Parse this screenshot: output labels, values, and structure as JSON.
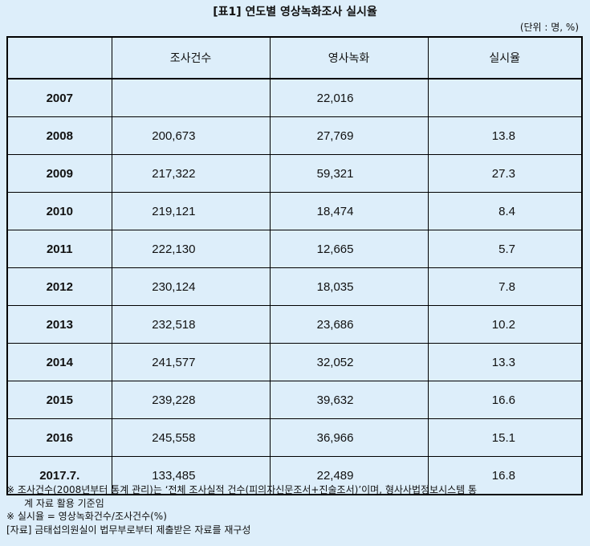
{
  "title": "[표1] 연도별 영상녹화조사 실시율",
  "unit": "(단위 : 명, %)",
  "headers": [
    "",
    "조사건수",
    "영사녹화",
    "실시율"
  ],
  "rows": [
    {
      "year": "2007",
      "cases": "",
      "recorded": "22,016",
      "rate": ""
    },
    {
      "year": "2008",
      "cases": "200,673",
      "recorded": "27,769",
      "rate": "13.8"
    },
    {
      "year": "2009",
      "cases": "217,322",
      "recorded": "59,321",
      "rate": "27.3"
    },
    {
      "year": "2010",
      "cases": "219,121",
      "recorded": "18,474",
      "rate": "8.4"
    },
    {
      "year": "2011",
      "cases": "222,130",
      "recorded": "12,665",
      "rate": "5.7"
    },
    {
      "year": "2012",
      "cases": "230,124",
      "recorded": "18,035",
      "rate": "7.8"
    },
    {
      "year": "2013",
      "cases": "232,518",
      "recorded": "23,686",
      "rate": "10.2"
    },
    {
      "year": "2014",
      "cases": "241,577",
      "recorded": "32,052",
      "rate": "13.3"
    },
    {
      "year": "2015",
      "cases": "239,228",
      "recorded": "39,632",
      "rate": "16.6"
    },
    {
      "year": "2016",
      "cases": "245,558",
      "recorded": "36,966",
      "rate": "15.1"
    },
    {
      "year": "2017.7.",
      "cases": "133,485",
      "recorded": "22,489",
      "rate": "16.8"
    }
  ],
  "notes": {
    "note1_line1": "※ 조사건수(2008년부터 통계 관리)는 ‘전체 조사실적 건수(피의자신문조서+진술조서)’이며, 형사사법정보시스템 통",
    "note1_line2": "계 자료 활용 기준임",
    "note2": "※ 실시율 = 영상녹화건수/조사건수(%)",
    "source": "[자료] 금태섭의원실이 법무부로부터 제출받은 자료를 재구성"
  }
}
